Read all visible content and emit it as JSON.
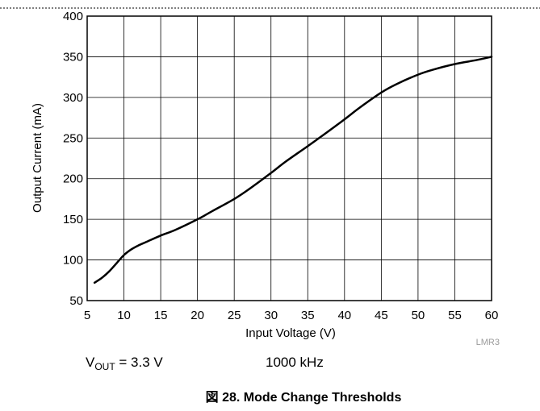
{
  "chart_data": {
    "type": "line",
    "xlabel": "Input Voltage (V)",
    "ylabel": "Output Current (mA)",
    "xlim": [
      5,
      60
    ],
    "ylim": [
      50,
      400
    ],
    "xticks": [
      5,
      10,
      15,
      20,
      25,
      30,
      35,
      40,
      45,
      50,
      55,
      60
    ],
    "yticks": [
      50,
      100,
      150,
      200,
      250,
      300,
      350,
      400
    ],
    "grid": true,
    "series": [
      {
        "x": [
          6,
          7,
          8,
          9,
          10,
          11,
          12,
          13,
          15,
          17,
          20,
          22,
          25,
          27,
          30,
          32,
          35,
          37,
          40,
          42,
          45,
          47,
          50,
          52,
          55,
          58,
          60
        ],
        "y": [
          72,
          78,
          86,
          96,
          106,
          113,
          118,
          122,
          130,
          137,
          150,
          160,
          175,
          187,
          207,
          221,
          240,
          253,
          273,
          287,
          306,
          316,
          328,
          334,
          341,
          346,
          350
        ],
        "color": "#000000"
      }
    ],
    "annotations": {
      "vout_prefix": "V",
      "vout_sub": "OUT",
      "vout_value": " = 3.3 V",
      "frequency": "1000 kHz",
      "code": "LMR3"
    },
    "caption": "図 28. Mode Change Thresholds"
  }
}
